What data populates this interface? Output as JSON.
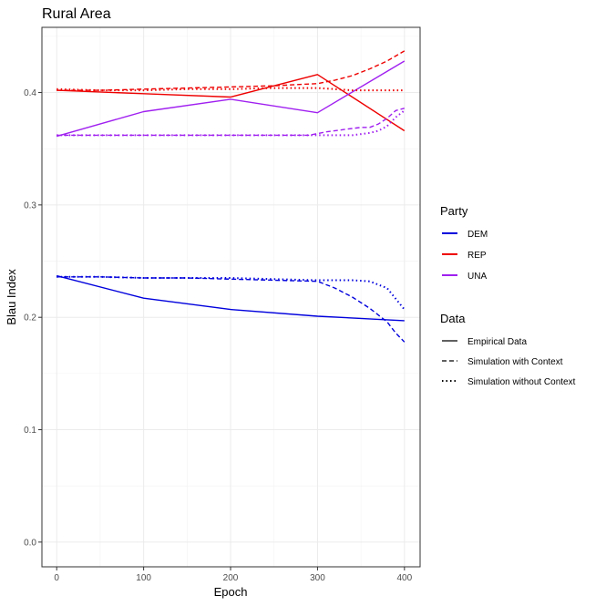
{
  "chart_data": {
    "type": "line",
    "title": "Rural Area",
    "xlabel": "Epoch",
    "ylabel": "Blau Index",
    "xlim": [
      -17,
      418
    ],
    "ylim": [
      -0.022,
      0.458
    ],
    "x_ticks": [
      0,
      100,
      200,
      300,
      400
    ],
    "y_ticks": [
      0.0,
      0.1,
      0.2,
      0.3,
      0.4
    ],
    "x_tick_labels": [
      "0",
      "100",
      "200",
      "300",
      "400"
    ],
    "y_tick_labels": [
      "0.0",
      "0.1",
      "0.2",
      "0.3",
      "0.4"
    ],
    "grid": true,
    "legend_position": "right",
    "colors": {
      "DEM": "#0000dd",
      "REP": "#ee0000",
      "UNA": "#a020f0"
    },
    "legend": {
      "party_title": "Party",
      "party_items": [
        "DEM",
        "REP",
        "UNA"
      ],
      "data_title": "Data",
      "data_items": [
        {
          "label": "Empirical Data",
          "linetype": "solid"
        },
        {
          "label": "Simulation with Context",
          "linetype": "dashed"
        },
        {
          "label": "Simulation without Context",
          "linetype": "dotted"
        }
      ]
    },
    "series": [
      {
        "party": "DEM",
        "data": "Empirical Data",
        "x": [
          0,
          100,
          200,
          300,
          400
        ],
        "y": [
          0.237,
          0.217,
          0.207,
          0.201,
          0.197
        ]
      },
      {
        "party": "REP",
        "data": "Empirical Data",
        "x": [
          0,
          100,
          200,
          300,
          400
        ],
        "y": [
          0.402,
          0.399,
          0.396,
          0.416,
          0.366
        ]
      },
      {
        "party": "UNA",
        "data": "Empirical Data",
        "x": [
          0,
          100,
          200,
          300,
          400
        ],
        "y": [
          0.361,
          0.383,
          0.394,
          0.382,
          0.428
        ]
      },
      {
        "party": "DEM",
        "data": "Simulation with Context",
        "x": [
          0,
          50,
          100,
          150,
          200,
          250,
          300,
          320,
          340,
          360,
          380,
          390,
          400
        ],
        "y": [
          0.236,
          0.236,
          0.235,
          0.235,
          0.234,
          0.233,
          0.232,
          0.226,
          0.218,
          0.208,
          0.196,
          0.186,
          0.178
        ]
      },
      {
        "party": "REP",
        "data": "Simulation with Context",
        "x": [
          0,
          50,
          100,
          150,
          200,
          250,
          300,
          320,
          340,
          360,
          380,
          400
        ],
        "y": [
          0.402,
          0.402,
          0.403,
          0.404,
          0.405,
          0.406,
          0.408,
          0.411,
          0.415,
          0.421,
          0.428,
          0.437
        ]
      },
      {
        "party": "UNA",
        "data": "Simulation with Context",
        "x": [
          0,
          50,
          100,
          150,
          200,
          250,
          290,
          310,
          330,
          350,
          360,
          370,
          380,
          390,
          400
        ],
        "y": [
          0.362,
          0.362,
          0.362,
          0.362,
          0.362,
          0.362,
          0.362,
          0.365,
          0.367,
          0.369,
          0.369,
          0.372,
          0.377,
          0.384,
          0.386
        ]
      },
      {
        "party": "DEM",
        "data": "Simulation without Context",
        "x": [
          0,
          50,
          100,
          150,
          200,
          250,
          300,
          320,
          340,
          360,
          380,
          400
        ],
        "y": [
          0.236,
          0.236,
          0.235,
          0.235,
          0.235,
          0.234,
          0.233,
          0.233,
          0.233,
          0.232,
          0.226,
          0.207
        ]
      },
      {
        "party": "REP",
        "data": "Simulation without Context",
        "x": [
          0,
          50,
          100,
          150,
          200,
          250,
          300,
          320,
          340,
          360,
          380,
          400
        ],
        "y": [
          0.403,
          0.402,
          0.402,
          0.403,
          0.403,
          0.404,
          0.404,
          0.403,
          0.402,
          0.402,
          0.402,
          0.402
        ]
      },
      {
        "party": "UNA",
        "data": "Simulation without Context",
        "x": [
          0,
          50,
          100,
          150,
          200,
          250,
          300,
          320,
          340,
          360,
          370,
          380,
          390,
          400
        ],
        "y": [
          0.362,
          0.362,
          0.362,
          0.362,
          0.362,
          0.362,
          0.362,
          0.362,
          0.362,
          0.364,
          0.366,
          0.37,
          0.378,
          0.384
        ]
      }
    ]
  }
}
